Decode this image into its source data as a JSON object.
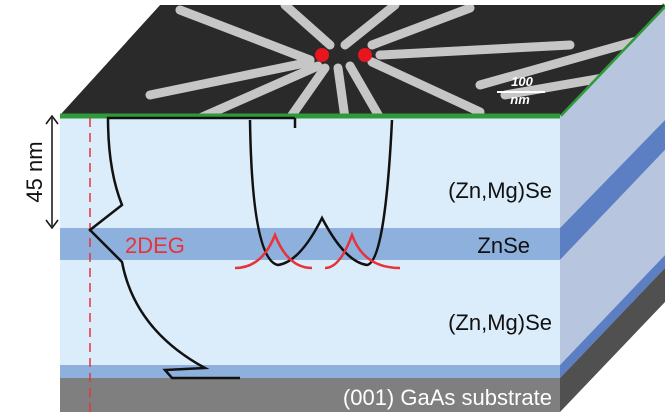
{
  "thickness": "45 nm",
  "electron_gas": "2DEG",
  "layers": [
    "(Zn,Mg)Se",
    "ZnSe",
    "(Zn,Mg)Se",
    "(001) GaAs substrate"
  ],
  "scale_bar": {
    "value": "100",
    "unit": "nm"
  }
}
